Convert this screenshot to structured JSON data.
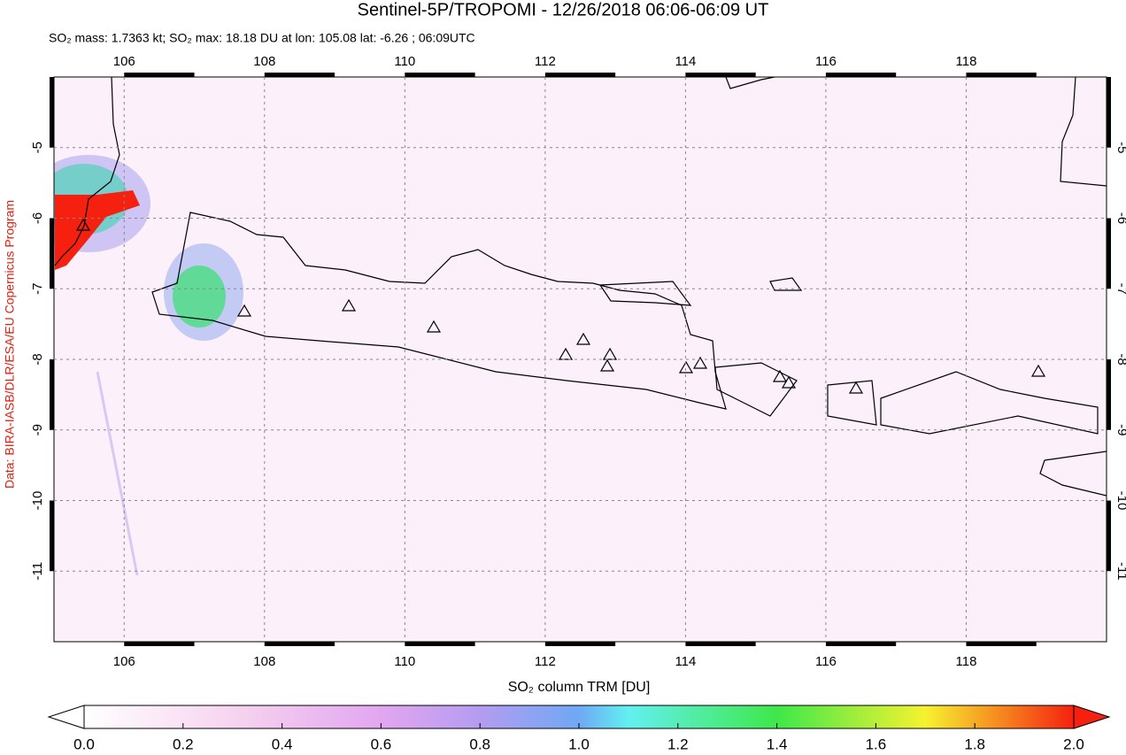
{
  "chart_data": {
    "type": "map",
    "title": "Sentinel-5P/TROPOMI - 12/26/2018 06:06-06:09 UT",
    "subtitle": "SO₂ mass: 1.7363 kt; SO₂ max: 18.18 DU at lon: 105.08 lat: -6.26 ; 06:09UTC",
    "credit": "Data: BIRA-IASB/DLR/ESA/EU Copernicus Program",
    "xlim": [
      105,
      120
    ],
    "ylim": [
      -12,
      -4
    ],
    "xticks": [
      106,
      108,
      110,
      112,
      114,
      116,
      118
    ],
    "yticks": [
      -5,
      -6,
      -7,
      -8,
      -9,
      -10,
      -11
    ],
    "grid": true,
    "colorbar": {
      "label": "SO₂ column TRM [DU]",
      "lim": [
        0,
        2
      ],
      "ticks": [
        {
          "value": 0,
          "label": "0.0"
        },
        {
          "value": 0.2,
          "label": "0.2"
        },
        {
          "value": 0.4,
          "label": "0.4"
        },
        {
          "value": 0.6,
          "label": "0.6"
        },
        {
          "value": 0.8,
          "label": "0.8"
        },
        {
          "value": 1,
          "label": "1.0"
        },
        {
          "value": 1.2,
          "label": "1.2"
        },
        {
          "value": 1.4,
          "label": "1.4"
        },
        {
          "value": 1.6,
          "label": "1.6"
        },
        {
          "value": 1.8,
          "label": "1.8"
        },
        {
          "value": 2,
          "label": "2.0"
        }
      ]
    }
  }
}
